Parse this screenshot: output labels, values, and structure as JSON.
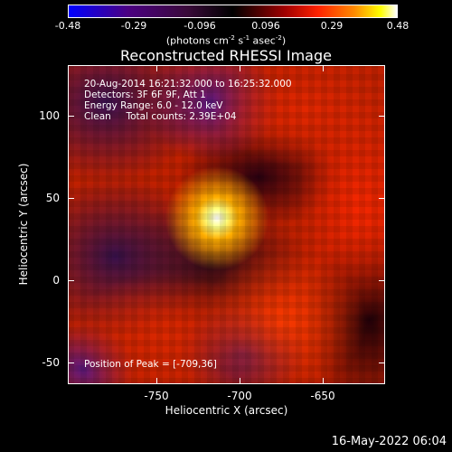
{
  "colorbar": {
    "ticks": [
      "-0.48",
      "-0.29",
      "-0.096",
      "0.096",
      "0.29",
      "0.48"
    ],
    "units": {
      "prefix": "(photons cm",
      "sup1": "-2",
      "mid1": " s",
      "sup2": "-1",
      "mid2": " asec",
      "sup3": "-2",
      "suffix": ")"
    },
    "colors": [
      "#0000ff",
      "#000000",
      "#ff0000",
      "#ffff00",
      "#ffffff"
    ]
  },
  "title": "Reconstructed RHESSI Image",
  "info": {
    "line1": "20-Aug-2014 16:21:32.000 to 16:25:32.000",
    "line2": "Detectors: 3F 6F 9F, Att 1",
    "line3": "Energy Range: 6.0 - 12.0 keV",
    "line4": "Clean     Total counts: 2.39E+04",
    "peak": "Position of Peak = [-709,36]"
  },
  "axes": {
    "xlabel": "Heliocentric X (arcsec)",
    "ylabel": "Heliocentric Y (arcsec)",
    "xticks": [
      "-750",
      "-700",
      "-650"
    ],
    "yticks": [
      "100",
      "50",
      "0",
      "-50"
    ],
    "xlim": [
      -798,
      -611
    ],
    "ylim": [
      -62,
      129
    ]
  },
  "timestamp": "16-May-2022 06:04"
}
